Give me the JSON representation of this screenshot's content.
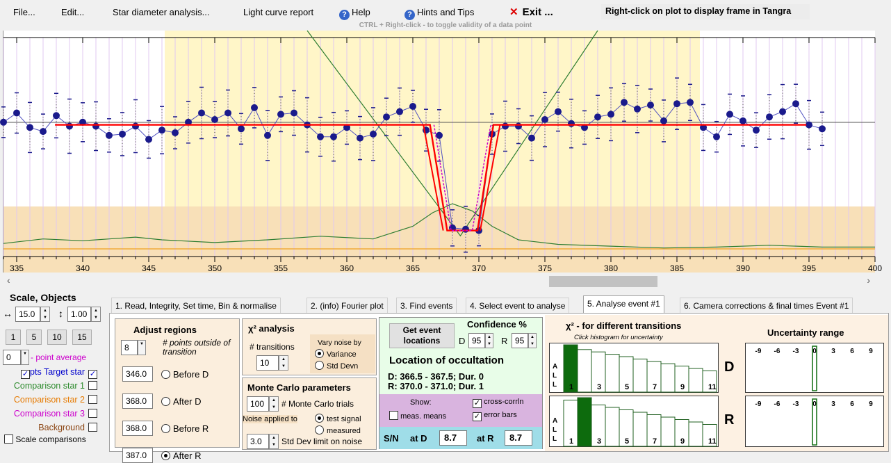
{
  "menu": {
    "file": "File...",
    "edit": "Edit...",
    "star_diameter": "Star diameter analysis...",
    "light_curve": "Light curve report",
    "help": "Help",
    "hints": "Hints and Tips",
    "exit": "Exit ...",
    "right_click_hint": "Right-click on plot to display frame in Tangra",
    "ctrl_hint": "CTRL + Right-click  -  to toggle validity of a data point"
  },
  "plot": {
    "x_ticks": [
      "335",
      "340",
      "345",
      "350",
      "355",
      "360",
      "365",
      "370",
      "375",
      "380",
      "385",
      "390",
      "395",
      "400"
    ],
    "colors": {
      "light_curve": "#3838a8",
      "points": "#1a1a8c",
      "model": "#ff0000",
      "chi2": "#2e7d32",
      "event_region": "#fff7cc",
      "baseline_region": "#f8e0b8"
    }
  },
  "chart_data": {
    "type": "line",
    "x_range": [
      334,
      400
    ],
    "series": [
      {
        "values": [
          [
            334,
            0.98
          ],
          [
            335,
            1.05
          ],
          [
            336,
            0.94
          ],
          [
            337,
            0.91
          ],
          [
            338,
            1.03
          ],
          [
            339,
            0.95
          ],
          [
            340,
            0.98
          ],
          [
            341,
            0.95
          ],
          [
            342,
            0.88
          ],
          [
            343,
            0.89
          ],
          [
            344,
            0.95
          ],
          [
            345,
            0.85
          ],
          [
            346,
            0.92
          ],
          [
            347,
            0.9
          ],
          [
            348,
            0.98
          ],
          [
            349,
            1.05
          ],
          [
            350,
            1.0
          ],
          [
            351,
            1.05
          ],
          [
            352,
            0.93
          ],
          [
            353,
            1.09
          ],
          [
            354,
            0.88
          ],
          [
            355,
            1.04
          ],
          [
            356,
            1.05
          ],
          [
            357,
            0.96
          ],
          [
            358,
            0.87
          ],
          [
            359,
            0.87
          ],
          [
            360,
            0.94
          ],
          [
            361,
            0.86
          ],
          [
            362,
            0.89
          ],
          [
            363,
            1.02
          ],
          [
            364,
            1.06
          ],
          [
            365,
            1.1
          ],
          [
            366,
            0.92
          ],
          [
            367,
            0.88
          ],
          [
            368,
            0.18
          ],
          [
            369,
            0.17
          ],
          [
            370,
            0.16
          ],
          [
            371,
            0.89
          ],
          [
            372,
            0.95
          ],
          [
            373,
            0.95
          ],
          [
            374,
            0.86
          ],
          [
            375,
            1.0
          ],
          [
            376,
            1.06
          ],
          [
            377,
            0.97
          ],
          [
            378,
            0.94
          ],
          [
            379,
            1.02
          ],
          [
            380,
            1.04
          ],
          [
            381,
            1.13
          ],
          [
            382,
            1.08
          ],
          [
            383,
            1.11
          ],
          [
            384,
            0.99
          ],
          [
            385,
            1.12
          ],
          [
            386,
            1.13
          ],
          [
            387,
            0.94
          ],
          [
            388,
            0.87
          ],
          [
            389,
            1.04
          ],
          [
            390,
            0.99
          ],
          [
            391,
            0.92
          ],
          [
            392,
            1.02
          ],
          [
            393,
            1.06
          ],
          [
            394,
            1.12
          ],
          [
            395,
            0.96
          ],
          [
            396,
            0.93
          ]
        ]
      },
      {
        "values": [
          [
            334,
            0.26
          ],
          [
            337,
            0.31
          ],
          [
            340,
            0.29
          ],
          [
            342,
            0.31
          ],
          [
            344,
            0.33
          ],
          [
            346,
            0.3
          ],
          [
            350,
            0.27
          ],
          [
            354,
            0.3
          ],
          [
            358,
            0.34
          ],
          [
            362,
            0.31
          ],
          [
            365,
            0.45
          ],
          [
            366.5,
            0.6
          ],
          [
            368,
            0.7
          ],
          [
            369.5,
            0.62
          ],
          [
            371,
            0.45
          ],
          [
            373,
            0.3
          ],
          [
            376,
            0.25
          ],
          [
            380,
            0.23
          ],
          [
            384,
            0.21
          ],
          [
            388,
            0.22
          ],
          [
            392,
            0.24
          ],
          [
            396,
            0.22
          ],
          [
            400,
            0.22
          ]
        ]
      }
    ]
  },
  "scale": {
    "title": "Scale,  Objects",
    "h_value": "15.0",
    "v_value": "1.00",
    "buttons": [
      "1",
      "5",
      "10",
      "15"
    ],
    "point_avg_value": "0",
    "point_avg_label": "- point average",
    "objects": [
      {
        "label": "pts  Target star",
        "color": "#0000cc",
        "checked": true
      },
      {
        "label": "Comparison star 1",
        "color": "#2e8b2e",
        "checked": false
      },
      {
        "label": "Comparison star 2",
        "color": "#e67a00",
        "checked": false
      },
      {
        "label": "Comparison star 3",
        "color": "#cc00cc",
        "checked": false
      },
      {
        "label": "Background",
        "color": "#8b4513",
        "checked": false
      }
    ],
    "scale_comparisons": "Scale comparisons"
  },
  "tabs": [
    "1.  Read, Integrity, Set time, Bin & normalise",
    "2. (info)  Fourier plot",
    "3. Find events",
    "4. Select event to analyse",
    "5. Analyse event #1",
    "6. Camera corrections & final times Event #1"
  ],
  "adjust": {
    "title": "Adjust regions",
    "points_value": "8",
    "points_label": "# points outside of transition",
    "regions": [
      {
        "value": "346.0",
        "label": "Before D"
      },
      {
        "value": "368.0",
        "label": "After D"
      },
      {
        "value": "368.0",
        "label": "Before R"
      },
      {
        "value": "387.0",
        "label": "After R"
      }
    ]
  },
  "chi": {
    "title": "χ² analysis",
    "transitions_label": "# transitions",
    "transitions_value": "10",
    "vary_label": "Vary noise by",
    "variance": "Variance",
    "std_devn": "Std Devn"
  },
  "monte": {
    "title": "Monte Carlo parameters",
    "trials_value": "100",
    "trials_label": "# Monte Carlo trials",
    "noise_label": "Noise applied to",
    "test_signal": "test signal",
    "measured": "measured",
    "std_value": "3.0",
    "std_label": "Std Dev limit on noise"
  },
  "event": {
    "get_button": "Get event locations",
    "confidence": "Confidence %",
    "d_label": "D",
    "d_value": "95",
    "r_label": "R",
    "r_value": "95",
    "location_title": "Location of occultation",
    "d_line": "D: 366.5 - 367.5; Dur. 0",
    "r_line": "R: 370.0 - 371.0; Dur. 1",
    "show": "Show:",
    "cross_corr": "cross-corrln",
    "meas_means": "meas. means",
    "error_bars": "error bars",
    "sn": "S/N",
    "at_d": "at D",
    "sn_d": "8.7",
    "at_r": "at R",
    "sn_r": "8.7"
  },
  "chi_hist": {
    "title": "χ² - for different transitions",
    "subtitle": "Click histogram for uncertainty",
    "all": [
      "A",
      "L",
      "L"
    ],
    "labels": [
      "1",
      "3",
      "5",
      "7",
      "9",
      "11"
    ],
    "d_label": "D",
    "r_label": "R"
  },
  "uncertainty": {
    "title": "Uncertainty range",
    "labels": [
      "-9",
      "-6",
      "-3",
      "0",
      "3",
      "6",
      "9"
    ]
  }
}
